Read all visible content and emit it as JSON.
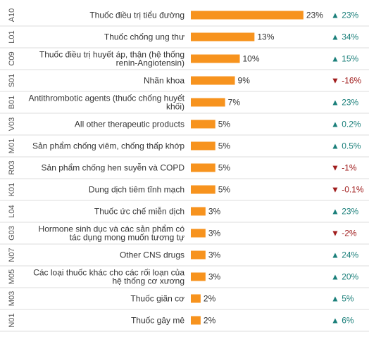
{
  "colors": {
    "bar": "#F7931E",
    "up": "#1A7F7A",
    "down": "#A01D1D",
    "divider": "#DDDDDD"
  },
  "chart_data": {
    "type": "bar",
    "orientation": "horizontal",
    "value_unit": "%",
    "rows": [
      {
        "code": "A10",
        "label": [
          "Thuốc điều trị tiểu đường"
        ],
        "value": 23,
        "value_label": "23%",
        "change": "▲ 23%",
        "direction": "up"
      },
      {
        "code": "L01",
        "label": [
          "Thuốc chống ung thư"
        ],
        "value": 13,
        "value_label": "13%",
        "change": "▲ 34%",
        "direction": "up"
      },
      {
        "code": "C09",
        "label": [
          "Thuốc điều trị huyết áp, thận (hệ thống",
          "renin-Angiotensin)"
        ],
        "value": 10,
        "value_label": "10%",
        "change": "▲ 15%",
        "direction": "up"
      },
      {
        "code": "S01",
        "label": [
          "Nhãn khoa"
        ],
        "value": 9,
        "value_label": "9%",
        "change": "▼ -16%",
        "direction": "down"
      },
      {
        "code": "B01",
        "label": [
          "Antithrombotic agents (thuốc chống huyết",
          "khối)"
        ],
        "value": 7,
        "value_label": "7%",
        "change": "▲ 23%",
        "direction": "up"
      },
      {
        "code": "V03",
        "label": [
          "All other therapeutic products"
        ],
        "value": 5,
        "value_label": "5%",
        "change": "▲ 0.2%",
        "direction": "up"
      },
      {
        "code": "M01",
        "label": [
          "Sản phẩm chống viêm, chống thấp khớp"
        ],
        "value": 5,
        "value_label": "5%",
        "change": "▲ 0.5%",
        "direction": "up"
      },
      {
        "code": "R03",
        "label": [
          "Sản phẩm chống hen suyễn và COPD"
        ],
        "value": 5,
        "value_label": "5%",
        "change": "▼ -1%",
        "direction": "down"
      },
      {
        "code": "K01",
        "label": [
          "Dung dịch tiêm tĩnh mạch"
        ],
        "value": 5,
        "value_label": "5%",
        "change": "▼ -0.1%",
        "direction": "down"
      },
      {
        "code": "L04",
        "label": [
          "Thuốc ức chế miễn dịch"
        ],
        "value": 3,
        "value_label": "3%",
        "change": "▲ 23%",
        "direction": "up"
      },
      {
        "code": "G03",
        "label": [
          "Hormone sinh dục và các sản phẩm có",
          "tác dụng mong muốn tương tự"
        ],
        "value": 3,
        "value_label": "3%",
        "change": "▼ -2%",
        "direction": "down"
      },
      {
        "code": "N07",
        "label": [
          "Other CNS drugs"
        ],
        "value": 3,
        "value_label": "3%",
        "change": "▲ 24%",
        "direction": "up"
      },
      {
        "code": "M05",
        "label": [
          "Các loại thuốc khác cho các rối loạn của",
          "hệ thống cơ xương"
        ],
        "value": 3,
        "value_label": "3%",
        "change": "▲ 20%",
        "direction": "up"
      },
      {
        "code": "M03",
        "label": [
          "Thuốc giãn cơ"
        ],
        "value": 2,
        "value_label": "2%",
        "change": "▲ 5%",
        "direction": "up"
      },
      {
        "code": "N01",
        "label": [
          "Thuốc gây mê"
        ],
        "value": 2,
        "value_label": "2%",
        "change": "▲ 6%",
        "direction": "up"
      }
    ]
  }
}
